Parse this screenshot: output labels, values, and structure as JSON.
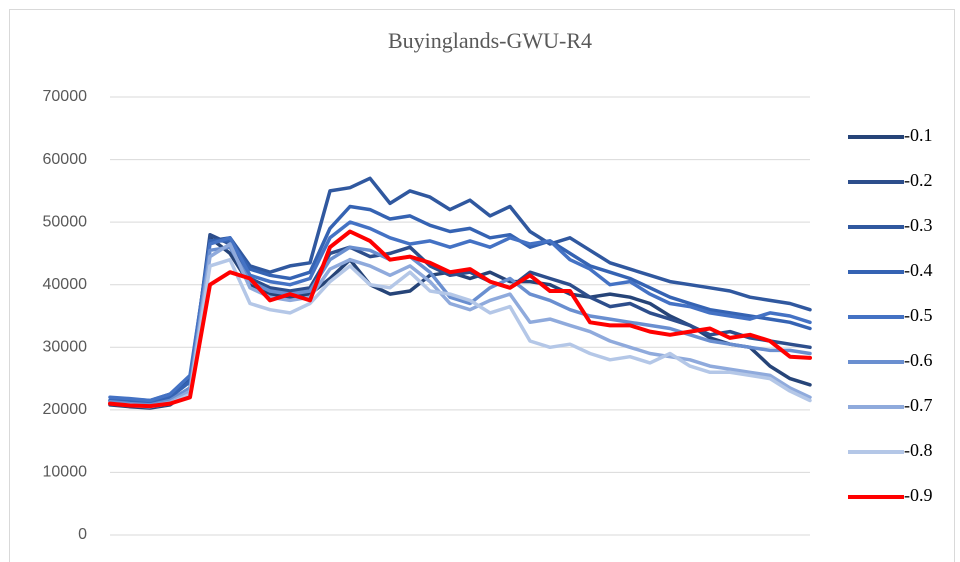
{
  "chart_data": {
    "type": "line",
    "title": "Buyinglands-GWU-R4",
    "categories": [
      null,
      null,
      null,
      null,
      null,
      null,
      null,
      null,
      null,
      null,
      null,
      null,
      null,
      null,
      null,
      null,
      null,
      null,
      null,
      null,
      null,
      null,
      null,
      null,
      null,
      null,
      null,
      null,
      null,
      null,
      null,
      null,
      null,
      null,
      null,
      null
    ],
    "ylim": [
      0,
      70000
    ],
    "yticks": [
      0,
      10000,
      20000,
      30000,
      40000,
      50000,
      60000,
      70000
    ],
    "grid": true,
    "legend": "right",
    "series": [
      {
        "name": "-0.1",
        "color": "#264478",
        "values": [
          20800,
          20500,
          20300,
          20800,
          23000,
          47500,
          45000,
          40000,
          38500,
          38000,
          38500,
          41000,
          44000,
          40000,
          38500,
          39000,
          41500,
          42000,
          41000,
          42000,
          40500,
          40500,
          40000,
          38500,
          38000,
          38500,
          38000,
          37000,
          35000,
          33500,
          31500,
          30500,
          30000,
          27000,
          25000,
          24000
        ]
      },
      {
        "name": "-0.2",
        "color": "#2d4e8c",
        "values": [
          21000,
          20800,
          20500,
          21500,
          23500,
          48000,
          46500,
          41000,
          39500,
          39000,
          39500,
          45000,
          46000,
          44500,
          45000,
          46000,
          43000,
          41500,
          42000,
          40500,
          39500,
          42000,
          41000,
          40000,
          38000,
          36500,
          37000,
          35500,
          34500,
          33500,
          32000,
          32500,
          31500,
          31000,
          30500,
          30000
        ]
      },
      {
        "name": "-0.3",
        "color": "#30589f",
        "values": [
          21500,
          21700,
          21500,
          22500,
          25000,
          47000,
          47500,
          43000,
          42000,
          43000,
          43500,
          55000,
          55500,
          57000,
          53000,
          55000,
          54000,
          52000,
          53500,
          51000,
          52500,
          48500,
          46500,
          47500,
          45500,
          43500,
          42500,
          41500,
          40500,
          40000,
          39500,
          39000,
          38000,
          37500,
          37000,
          36000
        ]
      },
      {
        "name": "-0.4",
        "color": "#3563b3",
        "values": [
          21500,
          21500,
          21000,
          22000,
          24500,
          47000,
          47000,
          42500,
          41500,
          41000,
          42000,
          49000,
          52500,
          52000,
          50500,
          51000,
          49500,
          48500,
          49000,
          47500,
          48000,
          46000,
          47000,
          45000,
          43000,
          42000,
          41000,
          39500,
          38000,
          37000,
          36000,
          35500,
          35000,
          34500,
          34000,
          33000
        ]
      },
      {
        "name": "-0.5",
        "color": "#4472c4",
        "values": [
          22000,
          21800,
          21500,
          22500,
          25500,
          46500,
          47500,
          41500,
          40500,
          40000,
          41000,
          47500,
          50000,
          49000,
          47500,
          46500,
          47000,
          46000,
          47000,
          46000,
          47500,
          46500,
          47000,
          44000,
          42500,
          40000,
          40500,
          38500,
          37000,
          36500,
          35500,
          35000,
          34500,
          35500,
          35000,
          34000
        ]
      },
      {
        "name": "-0.6",
        "color": "#6a8fd0",
        "values": [
          21300,
          21000,
          20800,
          21500,
          23500,
          45500,
          46000,
          40500,
          39000,
          38500,
          39000,
          44000,
          46000,
          45500,
          44000,
          44500,
          42000,
          38000,
          37000,
          39500,
          41000,
          38500,
          37500,
          36000,
          35000,
          34500,
          34000,
          33500,
          33000,
          32000,
          31000,
          30500,
          30000,
          29500,
          29500,
          29000
        ]
      },
      {
        "name": "-0.7",
        "color": "#8faadc",
        "values": [
          21000,
          20800,
          20600,
          21200,
          23000,
          44500,
          46500,
          39500,
          38000,
          37500,
          38000,
          42500,
          44000,
          43000,
          41500,
          43000,
          40500,
          37000,
          36000,
          37500,
          38500,
          34000,
          34500,
          33500,
          32500,
          31000,
          30000,
          29000,
          28500,
          28000,
          27000,
          26500,
          26000,
          25500,
          23500,
          22000
        ]
      },
      {
        "name": "-0.8",
        "color": "#b4c7e7",
        "values": [
          21000,
          20700,
          20500,
          21000,
          22500,
          43000,
          44000,
          37000,
          36000,
          35500,
          37000,
          40500,
          43000,
          40000,
          39500,
          42000,
          39000,
          38500,
          37500,
          35500,
          36500,
          31000,
          30000,
          30500,
          29000,
          28000,
          28500,
          27500,
          29000,
          27000,
          26000,
          26000,
          25500,
          25000,
          23000,
          21500
        ]
      },
      {
        "name": "-0.9",
        "color": "#ff0000",
        "values": [
          21000,
          20700,
          20600,
          21000,
          22000,
          40000,
          42000,
          41000,
          37500,
          38500,
          37500,
          46000,
          48500,
          47000,
          44000,
          44500,
          43500,
          42000,
          42500,
          40500,
          39500,
          41500,
          39000,
          39000,
          34000,
          33500,
          33500,
          32500,
          32000,
          32500,
          33000,
          31500,
          32000,
          31000,
          28500,
          28300
        ]
      }
    ]
  }
}
